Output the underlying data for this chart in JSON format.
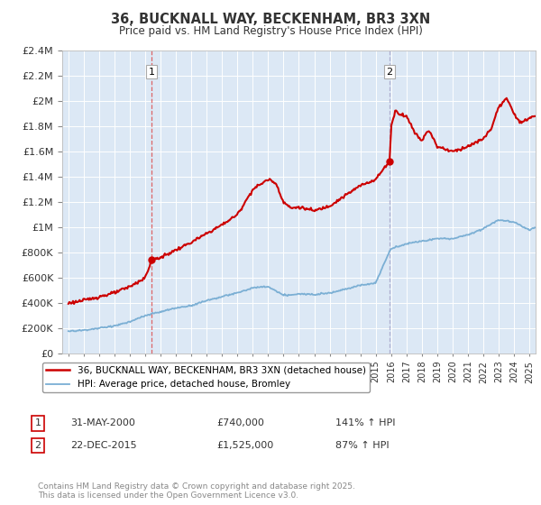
{
  "title": "36, BUCKNALL WAY, BECKENHAM, BR3 3XN",
  "subtitle": "Price paid vs. HM Land Registry's House Price Index (HPI)",
  "red_label": "36, BUCKNALL WAY, BECKENHAM, BR3 3XN (detached house)",
  "blue_label": "HPI: Average price, detached house, Bromley",
  "sale1_date": "31-MAY-2000",
  "sale1_price": 740000,
  "sale1_hpi_pct": "141% ↑ HPI",
  "sale2_date": "22-DEC-2015",
  "sale2_price": 1525000,
  "sale2_hpi_pct": "87% ↑ HPI",
  "footnote": "Contains HM Land Registry data © Crown copyright and database right 2025.\nThis data is licensed under the Open Government Licence v3.0.",
  "red_color": "#cc0000",
  "blue_color": "#7bafd4",
  "sale1_vline_color": "#dd4444",
  "sale2_vline_color": "#aaaacc",
  "background": "#ffffff",
  "plot_background": "#dce8f5",
  "grid_color": "#ffffff",
  "ylim": [
    0,
    2400000
  ],
  "xlim_start": 1994.6,
  "xlim_end": 2025.4,
  "red_anchors_x": [
    1995.0,
    1996.0,
    1997.0,
    1998.0,
    1999.0,
    2000.0,
    2000.42,
    2001.0,
    2002.0,
    2003.0,
    2004.0,
    2005.0,
    2006.0,
    2007.0,
    2008.0,
    2008.5,
    2009.0,
    2009.5,
    2010.0,
    2011.0,
    2012.0,
    2013.0,
    2014.0,
    2015.0,
    2015.9,
    2016.0,
    2016.3,
    2016.5,
    2017.0,
    2017.5,
    2018.0,
    2018.3,
    2018.5,
    2019.0,
    2019.5,
    2020.0,
    2021.0,
    2022.0,
    2022.5,
    2023.0,
    2023.5,
    2024.0,
    2024.5,
    2025.0,
    2025.4
  ],
  "red_anchors_y": [
    400000,
    420000,
    450000,
    480000,
    530000,
    600000,
    740000,
    760000,
    820000,
    880000,
    950000,
    1020000,
    1100000,
    1300000,
    1380000,
    1350000,
    1200000,
    1150000,
    1160000,
    1130000,
    1170000,
    1250000,
    1330000,
    1380000,
    1525000,
    1800000,
    1930000,
    1900000,
    1880000,
    1760000,
    1680000,
    1760000,
    1760000,
    1640000,
    1620000,
    1600000,
    1640000,
    1700000,
    1780000,
    1950000,
    2020000,
    1900000,
    1820000,
    1870000,
    1880000
  ],
  "hpi_anchors_x": [
    1995.0,
    1996.0,
    1997.0,
    1998.0,
    1999.0,
    2000.0,
    2001.0,
    2002.0,
    2003.0,
    2004.0,
    2005.0,
    2006.0,
    2007.0,
    2008.0,
    2009.0,
    2010.0,
    2011.0,
    2012.0,
    2013.0,
    2014.0,
    2015.0,
    2015.9,
    2016.0,
    2016.5,
    2017.0,
    2018.0,
    2019.0,
    2020.0,
    2021.0,
    2022.0,
    2023.0,
    2024.0,
    2025.0,
    2025.4
  ],
  "hpi_anchors_y": [
    175000,
    185000,
    200000,
    220000,
    250000,
    300000,
    330000,
    360000,
    380000,
    420000,
    450000,
    480000,
    520000,
    530000,
    460000,
    470000,
    470000,
    480000,
    510000,
    540000,
    560000,
    810000,
    830000,
    850000,
    870000,
    890000,
    910000,
    910000,
    940000,
    990000,
    1060000,
    1040000,
    980000,
    1000000
  ]
}
